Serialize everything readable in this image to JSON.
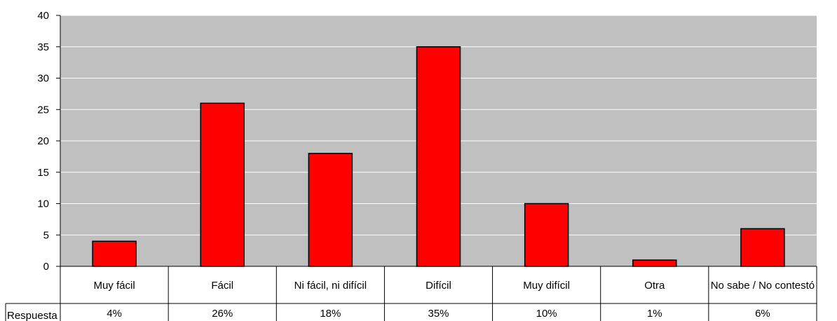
{
  "chart_data": {
    "type": "bar",
    "title": "",
    "xlabel": "",
    "ylabel": "",
    "categories": [
      "Muy fácil",
      "Fácil",
      "Ni fácil, ni difícil",
      "Difícil",
      "Muy difícil",
      "Otra",
      "No sabe / No contestó"
    ],
    "series": [
      {
        "name": "Respuesta",
        "values": [
          4,
          26,
          18,
          35,
          10,
          1,
          6
        ],
        "table_labels": [
          "4%",
          "26%",
          "18%",
          "35%",
          "10%",
          "1%",
          "6%"
        ],
        "color": "#ff0000"
      }
    ],
    "ylim": [
      0,
      40
    ],
    "yticks": [
      0,
      5,
      10,
      15,
      20,
      25,
      30,
      35,
      40
    ],
    "grid": true,
    "plot_background": "#c0c0c0",
    "data_table": true
  }
}
